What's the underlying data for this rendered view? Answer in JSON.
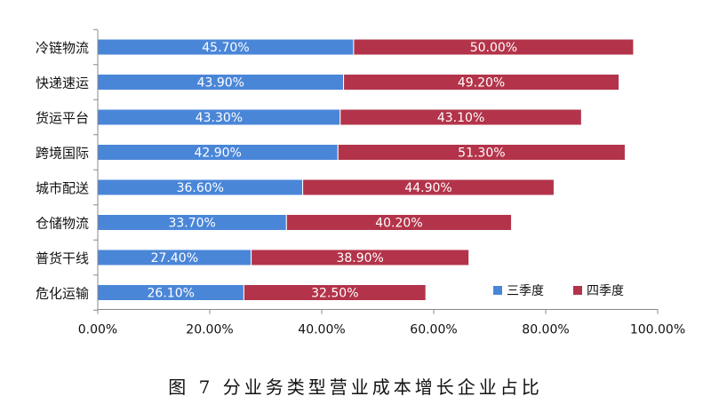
{
  "caption": "图 7   分业务类型营业成本增长企业占比",
  "chart_data": {
    "type": "bar",
    "orientation": "horizontal",
    "stacked": true,
    "categories": [
      "冷链物流",
      "快递速运",
      "货运平台",
      "跨境国际",
      "城市配送",
      "仓储物流",
      "普货干线",
      "危化运输"
    ],
    "series": [
      {
        "name": "三季度",
        "values": [
          45.7,
          43.9,
          43.3,
          42.9,
          36.6,
          33.7,
          27.4,
          26.1
        ],
        "labels": [
          "45.70%",
          "43.90%",
          "43.30%",
          "42.90%",
          "36.60%",
          "33.70%",
          "27.40%",
          "26.10%"
        ],
        "color": "#4A86D8"
      },
      {
        "name": "四季度",
        "values": [
          50.0,
          49.2,
          43.1,
          51.3,
          44.9,
          40.2,
          38.9,
          32.5
        ],
        "labels": [
          "50.00%",
          "49.20%",
          "43.10%",
          "51.30%",
          "44.90%",
          "40.20%",
          "38.90%",
          "32.50%"
        ],
        "color": "#B3344A"
      }
    ],
    "xlim": [
      0,
      100
    ],
    "x_ticks": [
      "0.00%",
      "20.00%",
      "40.00%",
      "60.00%",
      "80.00%",
      "100.00%"
    ],
    "grid": false,
    "legend_position": "bottom-right"
  }
}
